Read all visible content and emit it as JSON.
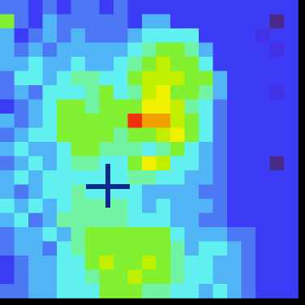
{
  "chart_data": {
    "type": "heatmap",
    "vlim": [
      -1,
      10
    ],
    "colormap": [
      "#4a2a86",
      "#4430e6",
      "#3c3cf6",
      "#4c78f6",
      "#50b4f6",
      "#60f0f0",
      "#70f4a4",
      "#80f030",
      "#c0f000",
      "#f0f000",
      "#f0a000",
      "#f03010"
    ],
    "values": [
      [
        2,
        2,
        1,
        2,
        1,
        2,
        2,
        1,
        2,
        1,
        1,
        1,
        1,
        1,
        1,
        1,
        1,
        1,
        1,
        1,
        1
      ],
      [
        6,
        2,
        1,
        3,
        2,
        2,
        2,
        2,
        2,
        1,
        3,
        3,
        1,
        1,
        1,
        1,
        1,
        1,
        1,
        -1,
        1
      ],
      [
        3,
        1,
        2,
        3,
        2,
        3,
        2,
        2,
        2,
        3,
        4,
        4,
        4,
        4,
        1,
        1,
        1,
        1,
        0,
        1,
        1
      ],
      [
        3,
        2,
        3,
        2,
        3,
        3,
        3,
        3,
        3,
        4,
        5,
        6,
        6,
        5,
        3,
        1,
        1,
        1,
        1,
        0,
        1
      ],
      [
        3,
        3,
        4,
        3,
        3,
        4,
        3,
        3,
        4,
        5,
        6,
        7,
        6,
        6,
        4,
        1,
        1,
        1,
        1,
        1,
        1
      ],
      [
        2,
        4,
        4,
        3,
        4,
        5,
        5,
        4,
        4,
        6,
        7,
        7,
        7,
        6,
        6,
        3,
        1,
        1,
        1,
        1,
        1
      ],
      [
        2,
        3,
        2,
        4,
        4,
        4,
        5,
        6,
        4,
        5,
        7,
        8,
        6,
        6,
        5,
        3,
        1,
        1,
        1,
        0,
        1
      ],
      [
        1,
        2,
        3,
        4,
        6,
        6,
        5,
        6,
        6,
        6,
        8,
        8,
        7,
        5,
        4,
        2,
        1,
        1,
        1,
        1,
        1
      ],
      [
        3,
        2,
        3,
        4,
        6,
        6,
        6,
        6,
        6,
        10,
        9,
        9,
        7,
        6,
        4,
        2,
        1,
        1,
        1,
        1,
        1
      ],
      [
        2,
        3,
        4,
        4,
        6,
        6,
        6,
        6,
        5,
        6,
        6,
        7,
        8,
        6,
        4,
        2,
        1,
        1,
        1,
        1,
        1
      ],
      [
        3,
        4,
        3,
        3,
        4,
        6,
        6,
        5,
        5,
        5,
        4,
        5,
        6,
        4,
        3,
        2,
        1,
        1,
        1,
        1,
        1
      ],
      [
        2,
        3,
        4,
        3,
        4,
        5,
        5,
        4,
        4,
        6,
        8,
        7,
        4,
        4,
        3,
        2,
        1,
        1,
        1,
        -1,
        1
      ],
      [
        3,
        4,
        3,
        4,
        4,
        4,
        4,
        4,
        4,
        5,
        5,
        4,
        4,
        3,
        3,
        2,
        1,
        1,
        1,
        1,
        1
      ],
      [
        3,
        2,
        3,
        4,
        4,
        5,
        4,
        4,
        4,
        4,
        3,
        3,
        3,
        3,
        2,
        2,
        1,
        1,
        1,
        1,
        1
      ],
      [
        4,
        3,
        4,
        3,
        4,
        5,
        5,
        5,
        5,
        4,
        3,
        4,
        3,
        3,
        3,
        2,
        1,
        1,
        1,
        1,
        1
      ],
      [
        3,
        4,
        2,
        3,
        5,
        5,
        5,
        5,
        5,
        4,
        4,
        4,
        3,
        3,
        2,
        2,
        1,
        1,
        1,
        1,
        1
      ],
      [
        2,
        3,
        3,
        4,
        3,
        5,
        6,
        6,
        6,
        6,
        6,
        6,
        4,
        3,
        3,
        3,
        2,
        2,
        1,
        1,
        1
      ],
      [
        2,
        3,
        3,
        2,
        4,
        5,
        6,
        6,
        6,
        6,
        6,
        6,
        5,
        3,
        4,
        4,
        3,
        2,
        1,
        1,
        1
      ],
      [
        1,
        2,
        3,
        3,
        4,
        4,
        6,
        7,
        6,
        6,
        7,
        6,
        5,
        4,
        4,
        3,
        3,
        2,
        1,
        1,
        1
      ],
      [
        1,
        2,
        3,
        3,
        4,
        4,
        5,
        6,
        6,
        7,
        6,
        6,
        5,
        4,
        4,
        3,
        3,
        2,
        1,
        1,
        1
      ],
      [
        2,
        2,
        3,
        3,
        4,
        4,
        4,
        6,
        6,
        6,
        5,
        5,
        4,
        4,
        3,
        4,
        3,
        2,
        1,
        1,
        1
      ]
    ]
  }
}
